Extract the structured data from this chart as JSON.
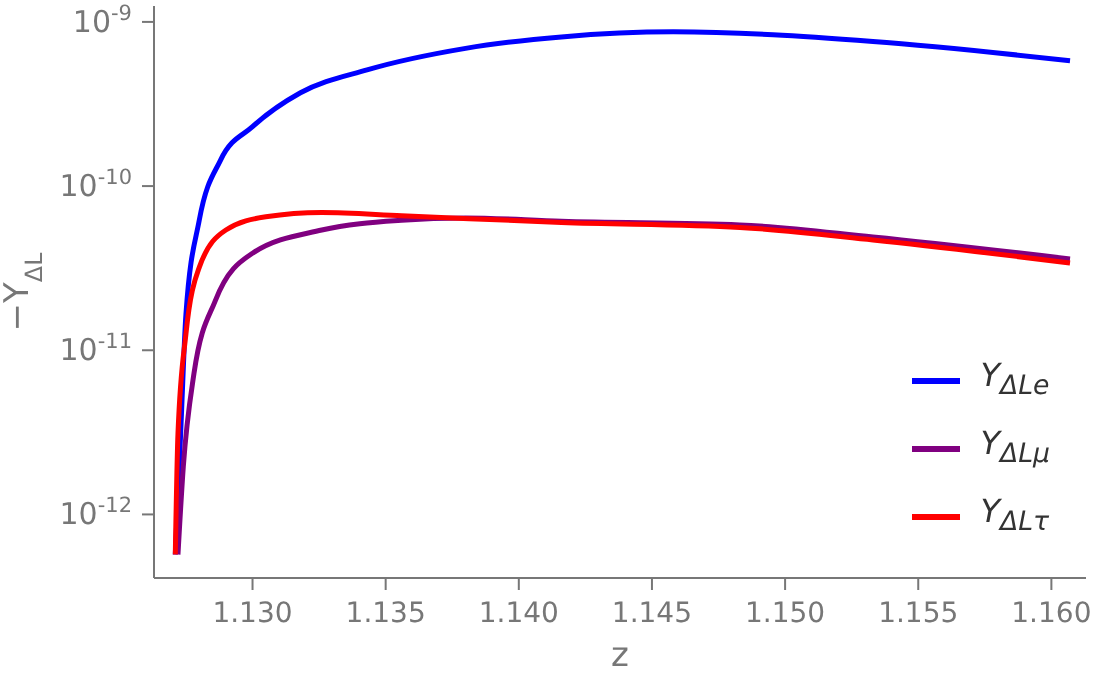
{
  "chart_data": {
    "type": "line",
    "xlabel": "z",
    "ylabel": "−Y$_{ΔL}$",
    "log": "y",
    "xlim": [
      1.1263,
      1.1613
    ],
    "xticks": [
      {
        "value": 1.13,
        "label": "1.130"
      },
      {
        "value": 1.135,
        "label": "1.135"
      },
      {
        "value": 1.14,
        "label": "1.140"
      },
      {
        "value": 1.145,
        "label": "1.145"
      },
      {
        "value": 1.15,
        "label": "1.150"
      },
      {
        "value": 1.155,
        "label": "1.155"
      },
      {
        "value": 1.16,
        "label": "1.160"
      }
    ],
    "ylim": [
      4.1e-13,
      1.25e-09
    ],
    "yticks": [
      {
        "value": 1e-12,
        "label": "10$^{-12}$"
      },
      {
        "value": 1e-11,
        "label": "10$^{-11}$"
      },
      {
        "value": 1e-10,
        "label": "10$^{-10}$"
      },
      {
        "value": 1e-09,
        "label": "10$^{-9}$"
      }
    ],
    "legend": "bottom right",
    "marker": "none",
    "line_style": "solid",
    "series": [
      {
        "name": "Y$_{ΔLe}$",
        "color": "#0000ff",
        "x": [
          1.1271,
          1.1273,
          1.1275,
          1.128,
          1.1288,
          1.13,
          1.1318,
          1.1343,
          1.138,
          1.1416,
          1.1458,
          1.1533,
          1.1607
        ],
        "values": [
          5.7e-13,
          3.1e-12,
          1.66e-11,
          6.2e-11,
          1.44e-10,
          2.3e-10,
          3.7e-10,
          5.1e-10,
          6.9e-10,
          8.1e-10,
          8.7e-10,
          7.6e-10,
          5.8e-10
        ]
      },
      {
        "name": "Y$_{ΔLμ}$",
        "color": "#800080",
        "x": [
          1.1272,
          1.1274,
          1.1278,
          1.1286,
          1.13,
          1.1326,
          1.1356,
          1.138,
          1.1416,
          1.1483,
          1.1533,
          1.1607
        ],
        "values": [
          5.7e-13,
          1.95e-12,
          7.2e-12,
          2e-11,
          3.9e-11,
          5.4e-11,
          6.2e-11,
          6.4e-11,
          6.1e-11,
          5.8e-11,
          4.9e-11,
          3.6e-11
        ]
      },
      {
        "name": "Y$_{ΔLτ}$",
        "color": "#ff0000",
        "x": [
          1.1271,
          1.1272,
          1.1275,
          1.128,
          1.129,
          1.1305,
          1.1326,
          1.1356,
          1.1416,
          1.1483,
          1.1533,
          1.1607
        ],
        "values": [
          5.7e-13,
          3.1e-12,
          1.26e-11,
          3.2e-11,
          5.4e-11,
          6.5e-11,
          6.9e-11,
          6.6e-11,
          6e-11,
          5.6e-11,
          4.7e-11,
          3.4e-11
        ]
      }
    ]
  }
}
